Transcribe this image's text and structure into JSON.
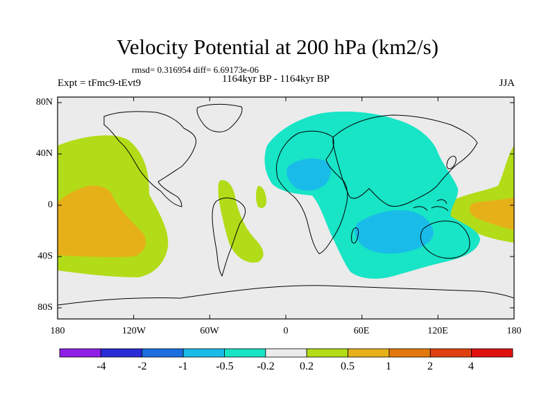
{
  "title": "Velocity Potential at 200 hPa (km2/s)",
  "stats": "rmsd= 0.316954 diff= 6.69173e-06",
  "period": "1164kyr BP - 1164kyr BP",
  "experiment": "Expt = tFmc9-tEvt9",
  "season": "JJA",
  "lat_labels": [
    "80N",
    "40N",
    "0",
    "40S",
    "80S"
  ],
  "lon_labels": [
    "180",
    "120W",
    "60W",
    "0",
    "60E",
    "120E",
    "180"
  ],
  "colorbar": {
    "labels": [
      "-4",
      "-2",
      "-1",
      "-0.5",
      "-0.2",
      "0.2",
      "0.5",
      "1",
      "2",
      "4"
    ],
    "colors": [
      "#8f1ee6",
      "#2a2ad6",
      "#1a6ee0",
      "#19bce8",
      "#18e4c6",
      "#ebebeb",
      "#b2dc18",
      "#e6b019",
      "#e2780e",
      "#e04010",
      "#e01010"
    ]
  },
  "map_colors": {
    "background": "#ebebeb",
    "neg_weak": "#18e4c6",
    "neg_mid": "#19bce8",
    "pos_weak": "#b2dc18",
    "pos_mid": "#e6b019"
  }
}
